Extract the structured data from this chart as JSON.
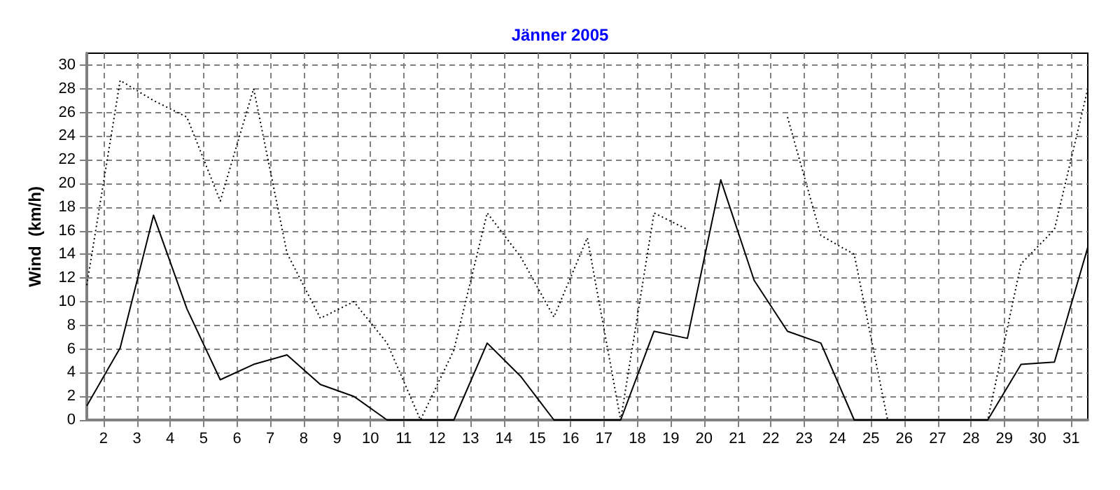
{
  "chart_data": {
    "type": "line",
    "title": "Jänner 2005",
    "ylabel": "Wind  (km/h)",
    "x": [
      1.5,
      2.5,
      3.5,
      4.5,
      5.5,
      6.5,
      7.5,
      8.5,
      9.5,
      10.5,
      11.5,
      12.5,
      13.5,
      14.5,
      15.5,
      16.5,
      17.5,
      18.5,
      19.5,
      20.5,
      21.5,
      22.5,
      23.5,
      24.5,
      25.5,
      26.5,
      27.5,
      28.5,
      29.5,
      30.5,
      31.5
    ],
    "series": [
      {
        "color": "#000000",
        "line_style": "dotted",
        "values": [
          11.4,
          28.7,
          27.0,
          25.6,
          18.5,
          28.0,
          14.1,
          8.6,
          10.0,
          6.5,
          0,
          5.9,
          17.5,
          13.8,
          8.7,
          15.4,
          0,
          17.5,
          16.1,
          null,
          null,
          25.6,
          15.6,
          14.0,
          0,
          0,
          0,
          0,
          13.2,
          16.1,
          28.0
        ]
      },
      {
        "color": "#000000",
        "line_style": "solid",
        "values": [
          1.2,
          6.1,
          17.3,
          9.4,
          3.4,
          4.7,
          5.5,
          3.0,
          2.0,
          0,
          0,
          0,
          6.5,
          3.7,
          0,
          0,
          0,
          7.5,
          6.9,
          20.3,
          11.8,
          7.5,
          6.5,
          0,
          0,
          0,
          0,
          0,
          4.7,
          4.9,
          14.6
        ]
      }
    ],
    "xlim": [
      1.5,
      31.5
    ],
    "xticks": [
      2,
      3,
      4,
      5,
      6,
      7,
      8,
      9,
      10,
      11,
      12,
      13,
      14,
      15,
      16,
      17,
      18,
      19,
      20,
      21,
      22,
      23,
      24,
      25,
      26,
      27,
      28,
      29,
      30,
      31
    ],
    "ylim": [
      0,
      31
    ],
    "yticks": [
      0,
      2,
      4,
      6,
      8,
      10,
      12,
      14,
      16,
      18,
      20,
      22,
      24,
      26,
      28,
      30
    ],
    "grid": true,
    "marker": "none"
  }
}
